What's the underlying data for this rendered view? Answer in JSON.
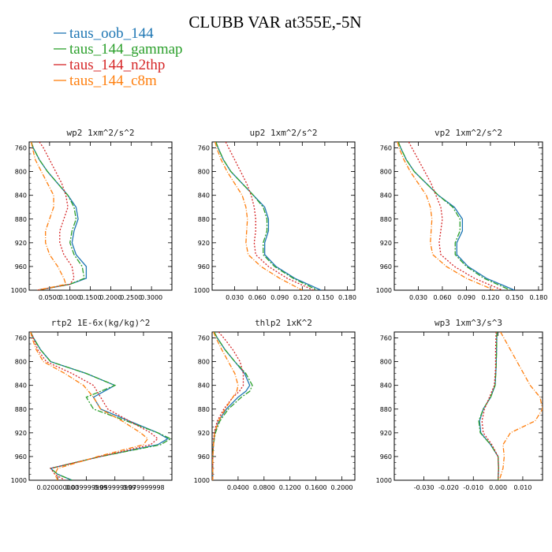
{
  "title": "CLUBB VAR at355E,-5N",
  "colors": {
    "taus_oob_144": "#1f77b4",
    "taus_144_gammap": "#2ca02c",
    "taus_144_n2thp": "#d62728",
    "taus_144_c8m": "#ff7f0e"
  },
  "legend": [
    "taus_oob_144",
    "taus_144_gammap",
    "taus_144_n2thp",
    "taus_144_c8m"
  ],
  "chart_data": [
    {
      "type": "line",
      "title": "wp2   1xm^2/s^2",
      "xlim": [
        0,
        0.35
      ],
      "ylim": [
        1000,
        750
      ],
      "xticks": [
        "0.0500",
        "0.1000",
        "0.1500",
        "0.2000",
        "0.2500",
        "0.3000"
      ],
      "xtick_values": [
        0.05,
        0.1,
        0.15,
        0.2,
        0.25,
        0.3
      ],
      "yticks": [
        760,
        800,
        840,
        880,
        920,
        960,
        1000
      ],
      "y": [
        750,
        760,
        780,
        800,
        820,
        840,
        860,
        880,
        900,
        920,
        940,
        960,
        980,
        990,
        1000
      ],
      "series": [
        {
          "name": "taus_oob_144",
          "x": [
            0.005,
            0.01,
            0.025,
            0.045,
            0.07,
            0.095,
            0.115,
            0.12,
            0.11,
            0.105,
            0.115,
            0.14,
            0.14,
            0.1,
            0.02
          ]
        },
        {
          "name": "taus_144_gammap",
          "x": [
            0.005,
            0.01,
            0.025,
            0.045,
            0.07,
            0.095,
            0.11,
            0.115,
            0.105,
            0.1,
            0.11,
            0.13,
            0.135,
            0.1,
            0.02
          ]
        },
        {
          "name": "taus_144_n2thp",
          "x": [
            0.025,
            0.035,
            0.05,
            0.065,
            0.08,
            0.09,
            0.095,
            0.085,
            0.075,
            0.075,
            0.085,
            0.105,
            0.11,
            0.1,
            0.02
          ]
        },
        {
          "name": "taus_144_c8m",
          "x": [
            0.005,
            0.008,
            0.015,
            0.03,
            0.045,
            0.06,
            0.06,
            0.05,
            0.04,
            0.04,
            0.05,
            0.07,
            0.085,
            0.09,
            0.02
          ]
        }
      ]
    },
    {
      "type": "line",
      "title": "up2   1xm^2/s^2",
      "xlim": [
        0,
        0.19
      ],
      "ylim": [
        1000,
        750
      ],
      "xticks": [
        "0.030",
        "0.060",
        "0.090",
        "0.120",
        "0.150",
        "0.180"
      ],
      "xtick_values": [
        0.03,
        0.06,
        0.09,
        0.12,
        0.15,
        0.18
      ],
      "yticks": [
        760,
        800,
        840,
        880,
        920,
        960,
        1000
      ],
      "y": [
        750,
        760,
        780,
        800,
        820,
        840,
        860,
        880,
        900,
        920,
        940,
        960,
        980,
        1000
      ],
      "series": [
        {
          "name": "taus_oob_144",
          "x": [
            0.005,
            0.008,
            0.015,
            0.025,
            0.04,
            0.055,
            0.07,
            0.075,
            0.075,
            0.07,
            0.07,
            0.085,
            0.11,
            0.145
          ]
        },
        {
          "name": "taus_144_gammap",
          "x": [
            0.005,
            0.008,
            0.015,
            0.025,
            0.04,
            0.055,
            0.068,
            0.073,
            0.073,
            0.068,
            0.068,
            0.083,
            0.108,
            0.14
          ]
        },
        {
          "name": "taus_144_n2thp",
          "x": [
            0.018,
            0.022,
            0.03,
            0.038,
            0.046,
            0.052,
            0.056,
            0.058,
            0.058,
            0.056,
            0.058,
            0.075,
            0.1,
            0.135
          ]
        },
        {
          "name": "taus_144_c8m",
          "x": [
            0.004,
            0.006,
            0.012,
            0.02,
            0.03,
            0.04,
            0.045,
            0.047,
            0.046,
            0.045,
            0.048,
            0.065,
            0.09,
            0.12
          ]
        }
      ]
    },
    {
      "type": "line",
      "title": "vp2   1xm^2/s^2",
      "xlim": [
        0,
        0.185
      ],
      "ylim": [
        1000,
        750
      ],
      "xticks": [
        "0.030",
        "0.060",
        "0.090",
        "0.120",
        "0.150",
        "0.180"
      ],
      "xtick_values": [
        0.03,
        0.06,
        0.09,
        0.12,
        0.15,
        0.18
      ],
      "yticks": [
        760,
        800,
        840,
        880,
        920,
        960,
        1000
      ],
      "y": [
        750,
        760,
        780,
        800,
        820,
        840,
        860,
        880,
        900,
        920,
        940,
        960,
        980,
        1000
      ],
      "series": [
        {
          "name": "taus_oob_144",
          "x": [
            0.005,
            0.008,
            0.015,
            0.025,
            0.04,
            0.055,
            0.075,
            0.085,
            0.085,
            0.078,
            0.078,
            0.092,
            0.115,
            0.15
          ]
        },
        {
          "name": "taus_144_gammap",
          "x": [
            0.005,
            0.008,
            0.015,
            0.025,
            0.04,
            0.055,
            0.073,
            0.082,
            0.082,
            0.076,
            0.076,
            0.09,
            0.112,
            0.145
          ]
        },
        {
          "name": "taus_144_n2thp",
          "x": [
            0.018,
            0.022,
            0.03,
            0.038,
            0.046,
            0.052,
            0.058,
            0.06,
            0.058,
            0.056,
            0.058,
            0.075,
            0.1,
            0.135
          ]
        },
        {
          "name": "taus_144_c8m",
          "x": [
            0.004,
            0.006,
            0.012,
            0.02,
            0.03,
            0.04,
            0.045,
            0.047,
            0.046,
            0.045,
            0.048,
            0.065,
            0.09,
            0.125
          ]
        }
      ]
    },
    {
      "type": "line",
      "title": "rtp2   1E-6x(kg/kg)^2",
      "xlim": [
        0,
        0.0999
      ],
      "ylim": [
        1000,
        750
      ],
      "xticks": [
        "0.020000000",
        "0.039999999",
        "0.059999999",
        "0.079999998"
      ],
      "xtick_values": [
        0.02,
        0.04,
        0.06,
        0.08
      ],
      "yticks": [
        760,
        800,
        840,
        880,
        920,
        960,
        1000
      ],
      "y": [
        750,
        760,
        780,
        800,
        820,
        840,
        860,
        880,
        900,
        920,
        930,
        940,
        960,
        980,
        990,
        1000
      ],
      "series": [
        {
          "name": "taus_oob_144",
          "x": [
            0.001,
            0.003,
            0.008,
            0.015,
            0.04,
            0.06,
            0.045,
            0.05,
            0.07,
            0.09,
            0.097,
            0.09,
            0.05,
            0.015,
            0.02,
            0.03
          ]
        },
        {
          "name": "taus_144_gammap",
          "x": [
            0.001,
            0.003,
            0.008,
            0.015,
            0.04,
            0.06,
            0.04,
            0.045,
            0.068,
            0.09,
            0.099,
            0.092,
            0.05,
            0.015,
            0.02,
            0.03
          ]
        },
        {
          "name": "taus_144_n2thp",
          "x": [
            0.001,
            0.003,
            0.006,
            0.012,
            0.03,
            0.045,
            0.05,
            0.055,
            0.07,
            0.085,
            0.09,
            0.085,
            0.05,
            0.015,
            0.018,
            0.025
          ]
        },
        {
          "name": "taus_144_c8m",
          "x": [
            0.001,
            0.002,
            0.005,
            0.01,
            0.025,
            0.038,
            0.045,
            0.05,
            0.065,
            0.078,
            0.083,
            0.08,
            0.048,
            0.02,
            0.018,
            0.02
          ]
        }
      ]
    },
    {
      "type": "line",
      "title": "thlp2   1xK^2",
      "xlim": [
        0,
        0.22
      ],
      "ylim": [
        1000,
        750
      ],
      "xticks": [
        "0.0400",
        "0.0800",
        "0.1200",
        "0.1600",
        "0.2000"
      ],
      "xtick_values": [
        0.04,
        0.08,
        0.12,
        0.16,
        0.2
      ],
      "yticks": [
        760,
        800,
        840,
        880,
        920,
        960,
        1000
      ],
      "y": [
        750,
        760,
        780,
        800,
        820,
        840,
        850,
        860,
        880,
        900,
        920,
        940,
        960,
        980,
        1000
      ],
      "series": [
        {
          "name": "taus_oob_144",
          "x": [
            0.003,
            0.008,
            0.02,
            0.035,
            0.05,
            0.058,
            0.052,
            0.04,
            0.022,
            0.01,
            0.004,
            0.002,
            0.001,
            0.001,
            0.001
          ]
        },
        {
          "name": "taus_144_gammap",
          "x": [
            0.003,
            0.008,
            0.02,
            0.035,
            0.052,
            0.062,
            0.058,
            0.045,
            0.025,
            0.012,
            0.005,
            0.002,
            0.001,
            0.001,
            0.001
          ]
        },
        {
          "name": "taus_144_n2thp",
          "x": [
            0.01,
            0.018,
            0.032,
            0.043,
            0.048,
            0.048,
            0.042,
            0.032,
            0.018,
            0.008,
            0.003,
            0.002,
            0.001,
            0.001,
            0.001
          ]
        },
        {
          "name": "taus_144_c8m",
          "x": [
            0.002,
            0.006,
            0.015,
            0.025,
            0.035,
            0.04,
            0.038,
            0.032,
            0.02,
            0.01,
            0.004,
            0.002,
            0.001,
            0.001,
            0.001
          ]
        }
      ]
    },
    {
      "type": "line",
      "title": "wp3   1xm^3/s^3",
      "xlim": [
        -0.042,
        0.018
      ],
      "ylim": [
        1000,
        750
      ],
      "xticks": [
        "-0.030",
        "-0.020",
        "-0.010",
        "0.000",
        "0.010"
      ],
      "xtick_values": [
        -0.03,
        -0.02,
        -0.01,
        0.0,
        0.01
      ],
      "yticks": [
        760,
        800,
        840,
        880,
        920,
        960,
        1000
      ],
      "y": [
        750,
        780,
        810,
        840,
        860,
        880,
        900,
        920,
        940,
        960,
        980,
        1000
      ],
      "series": [
        {
          "name": "taus_oob_144",
          "x": [
            -0.0005,
            -0.0006,
            -0.0008,
            -0.0012,
            -0.003,
            -0.006,
            -0.0075,
            -0.007,
            -0.003,
            0.0,
            0.0002,
            0.0
          ]
        },
        {
          "name": "taus_144_gammap",
          "x": [
            -0.0005,
            -0.0006,
            -0.0008,
            -0.0012,
            -0.003,
            -0.006,
            -0.0078,
            -0.0072,
            -0.003,
            0.0,
            0.0002,
            0.0
          ]
        },
        {
          "name": "taus_144_n2thp",
          "x": [
            -0.0008,
            -0.001,
            -0.001,
            -0.0015,
            -0.0035,
            -0.0055,
            -0.0065,
            -0.006,
            -0.0025,
            0.0,
            0.0002,
            0.0
          ]
        },
        {
          "name": "taus_144_c8m",
          "x": [
            0.001,
            0.005,
            0.009,
            0.013,
            0.017,
            0.018,
            0.015,
            0.005,
            0.002,
            0.0025,
            0.002,
            0.0005
          ]
        }
      ]
    }
  ]
}
